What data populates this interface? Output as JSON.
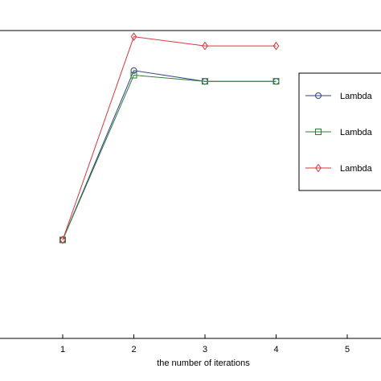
{
  "chart_data": {
    "type": "line",
    "xlabel": "the number of iterations",
    "ylabel": "",
    "title": "",
    "x_ticks": [
      "1",
      "2",
      "3",
      "4",
      "5"
    ],
    "xlim": [
      0.1,
      5.5
    ],
    "ylim": [
      0,
      10
    ],
    "grid": false,
    "legend_position": "right",
    "series": [
      {
        "name": "Lambda",
        "marker": "circle",
        "color": "#2f3e8f",
        "x": [
          1,
          2,
          3,
          4
        ],
        "y": [
          3.2,
          8.7,
          8.35,
          8.35
        ]
      },
      {
        "name": "Lambda",
        "marker": "square",
        "color": "#2e7d32",
        "x": [
          1,
          2,
          3,
          4
        ],
        "y": [
          3.2,
          8.55,
          8.35,
          8.35
        ]
      },
      {
        "name": "Lambda",
        "marker": "diamond",
        "color": "#d9363e",
        "x": [
          1,
          2,
          3,
          4
        ],
        "y": [
          3.2,
          9.8,
          9.5,
          9.5
        ]
      }
    ]
  }
}
